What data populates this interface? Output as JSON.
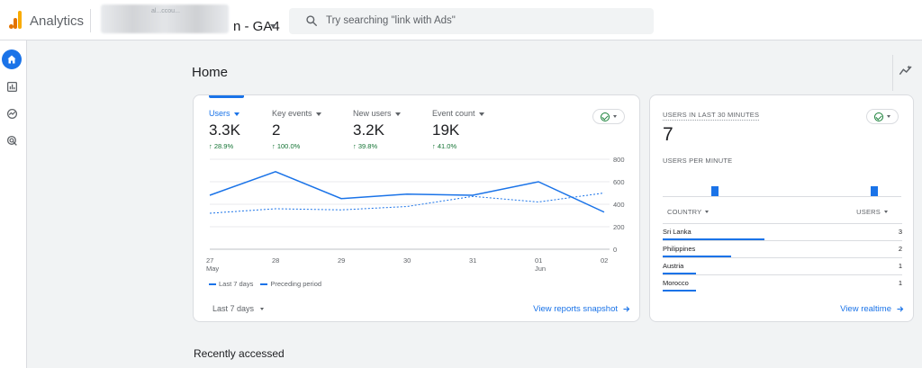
{
  "app": {
    "title": "Analytics",
    "account_line": "al...ccou...",
    "property": "n - GA4"
  },
  "search": {
    "placeholder": "Try searching \"link with Ads\""
  },
  "page": {
    "title": "Home",
    "recent_title": "Recently accessed"
  },
  "metrics": [
    {
      "label": "Users",
      "value": "3.3K",
      "change": "28.9%",
      "active": true
    },
    {
      "label": "Key events",
      "value": "2",
      "change": "100.0%",
      "active": false
    },
    {
      "label": "New users",
      "value": "3.2K",
      "change": "39.8%",
      "active": false
    },
    {
      "label": "Event count",
      "value": "19K",
      "change": "41.0%",
      "active": false
    }
  ],
  "chart_data": {
    "type": "line",
    "x": [
      "27 May",
      "28",
      "29",
      "30",
      "31",
      "01 Jun",
      "02"
    ],
    "x_tick_labels": [
      {
        "day": "27",
        "month": "May"
      },
      {
        "day": "28",
        "month": ""
      },
      {
        "day": "29",
        "month": ""
      },
      {
        "day": "30",
        "month": ""
      },
      {
        "day": "31",
        "month": ""
      },
      {
        "day": "01",
        "month": "Jun"
      },
      {
        "day": "02",
        "month": ""
      }
    ],
    "series": [
      {
        "name": "Last 7 days",
        "style": "solid",
        "values": [
          480,
          690,
          450,
          490,
          480,
          600,
          330
        ]
      },
      {
        "name": "Preceding period",
        "style": "dashed",
        "values": [
          320,
          360,
          350,
          380,
          470,
          420,
          500
        ]
      }
    ],
    "y_ticks": [
      "800",
      "600",
      "400",
      "200",
      "0"
    ],
    "ylim": [
      0,
      800
    ],
    "grid": true,
    "legend_position": "bottom-left",
    "color": "#1a73e8"
  },
  "main_card": {
    "range_label": "Last 7 days",
    "link_label": "View reports snapshot"
  },
  "realtime": {
    "label": "USERS IN LAST 30 MINUTES",
    "value": "7",
    "per_minute_label": "USERS PER MINUTE",
    "per_minute_bars": [
      0,
      0,
      0,
      0,
      0,
      0,
      1,
      0,
      0,
      0,
      0,
      0,
      0,
      0,
      0,
      0,
      0,
      0,
      0,
      0,
      0,
      0,
      0,
      0,
      0,
      0,
      1,
      0,
      0,
      0
    ],
    "country_header": "COUNTRY",
    "users_header": "USERS",
    "countries": [
      {
        "name": "Sri Lanka",
        "users": "3",
        "share": 1.0
      },
      {
        "name": "Philippines",
        "users": "2",
        "share": 0.67
      },
      {
        "name": "Austria",
        "users": "1",
        "share": 0.33
      },
      {
        "name": "Morocco",
        "users": "1",
        "share": 0.33
      }
    ],
    "link_label": "View realtime"
  },
  "icons": {
    "home": "home-icon",
    "reports": "bar-chart-icon",
    "explore": "explore-icon",
    "advertising": "target-icon",
    "search": "search-icon",
    "insights": "insights-icon",
    "arrow": "arrow-right-icon"
  },
  "colors": {
    "accent": "#1a73e8",
    "positive": "#137333",
    "check": "#188038",
    "logo_orange": "#e37400",
    "logo_yellow": "#f9ab00"
  }
}
